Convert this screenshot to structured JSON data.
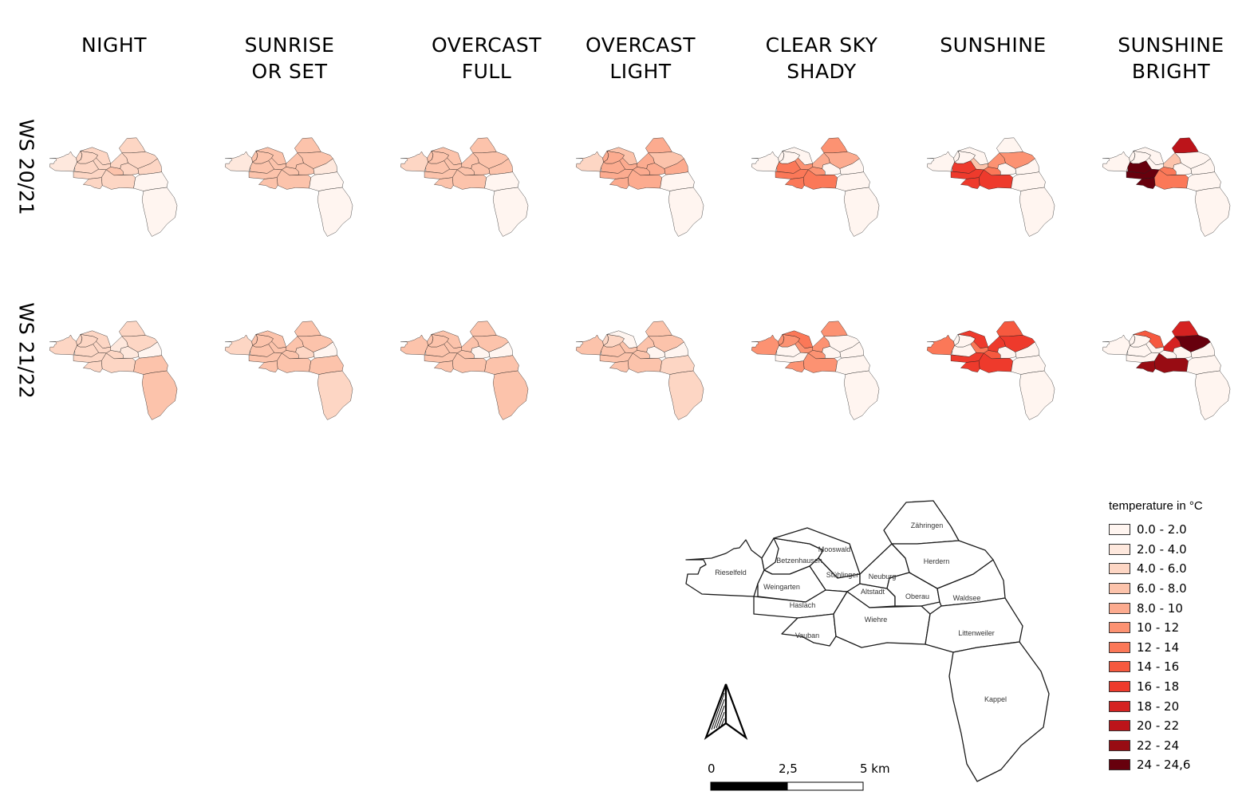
{
  "columns": [
    {
      "line1": "NIGHT",
      "line2": ""
    },
    {
      "line1": "SUNRISE",
      "line2": "OR SET"
    },
    {
      "line1": "OVERCAST",
      "line2": "FULL"
    },
    {
      "line1": "OVERCAST",
      "line2": "LIGHT"
    },
    {
      "line1": "CLEAR SKY",
      "line2": "SHADY"
    },
    {
      "line1": "SUNSHINE",
      "line2": ""
    },
    {
      "line1": "SUNSHINE",
      "line2": "BRIGHT"
    }
  ],
  "rows": [
    "WS 20/21",
    "WS 21/22"
  ],
  "legend": {
    "title": "temperature in °C",
    "items": [
      {
        "label": "0.0 - 2.0",
        "color": "#fff5f0"
      },
      {
        "label": "2.0 - 4.0",
        "color": "#fee8dd"
      },
      {
        "label": "4.0 - 6.0",
        "color": "#fdd6c4"
      },
      {
        "label": "6.0 - 8.0",
        "color": "#fcc3ab"
      },
      {
        "label": "8.0 - 10",
        "color": "#fcab8f"
      },
      {
        "label": "10 - 12",
        "color": "#fc9272"
      },
      {
        "label": "12 - 14",
        "color": "#fb7858"
      },
      {
        "label": "14 - 16",
        "color": "#f6593f"
      },
      {
        "label": "16 - 18",
        "color": "#ee3a2c"
      },
      {
        "label": "18 - 20",
        "color": "#d52221"
      },
      {
        "label": "20 - 22",
        "color": "#bc141a"
      },
      {
        "label": "22 - 24",
        "color": "#980c13"
      },
      {
        "label": "24 - 24,6",
        "color": "#67000d"
      }
    ]
  },
  "district_labels": {
    "rieselfeld": "Rieselfeld",
    "betzenhausen": "Betzenhausen",
    "mooswald": "Mooswald",
    "stuehlinger": "Stühlinger",
    "weingarten": "Weingarten",
    "haslach": "Haslach",
    "vauban": "Vauban",
    "altstadt": "Altstadt",
    "neuburg": "Neuburg",
    "oberau": "Oberau",
    "waldsee": "Waldsee",
    "wiehre": "Wiehre",
    "zaehringen": "Zähringen",
    "herdern": "Herdern",
    "littenweiler": "Littenweiler",
    "kappel": "Kappel"
  },
  "scale": {
    "tick0": "0",
    "tick1": "2,5",
    "tick2": "5 km"
  },
  "north_arrow_icon": "north-arrow-icon",
  "panels": [
    [
      {
        "rieselfeld": 1,
        "betzenhausen": 2,
        "mooswald": 2,
        "stuehlinger": 2,
        "weingarten": 2,
        "haslach": 2,
        "vauban": 2,
        "altstadt": 3,
        "neuburg": 2,
        "oberau": 2,
        "waldsee": 2,
        "wiehre": 2,
        "zaehringen": 2,
        "herdern": 2,
        "littenweiler": 0,
        "kappel": 0
      },
      {
        "rieselfeld": 1,
        "betzenhausen": 3,
        "mooswald": 3,
        "stuehlinger": 3,
        "weingarten": 3,
        "haslach": 3,
        "vauban": 3,
        "altstadt": 3,
        "neuburg": 3,
        "oberau": 3,
        "waldsee": 1,
        "wiehre": 3,
        "zaehringen": 3,
        "herdern": 3,
        "littenweiler": 0,
        "kappel": 0
      },
      {
        "rieselfeld": 2,
        "betzenhausen": 3,
        "mooswald": 3,
        "stuehlinger": 3,
        "weingarten": 3,
        "haslach": 3,
        "vauban": 3,
        "altstadt": 3,
        "neuburg": 3,
        "oberau": 3,
        "waldsee": 3,
        "wiehre": 3,
        "zaehringen": 3,
        "herdern": 3,
        "littenweiler": 0,
        "kappel": 0
      },
      {
        "rieselfeld": 2,
        "betzenhausen": 4,
        "mooswald": 3,
        "stuehlinger": 4,
        "weingarten": 4,
        "haslach": 4,
        "vauban": 4,
        "altstadt": 4,
        "neuburg": 4,
        "oberau": 4,
        "waldsee": 4,
        "wiehre": 4,
        "zaehringen": 4,
        "herdern": 3,
        "littenweiler": 0,
        "kappel": 0
      },
      {
        "rieselfeld": 0,
        "betzenhausen": 0,
        "mooswald": 0,
        "stuehlinger": 5,
        "weingarten": 6,
        "haslach": 6,
        "vauban": 6,
        "altstadt": 5,
        "neuburg": 4,
        "oberau": 0,
        "waldsee": 0,
        "wiehre": 6,
        "zaehringen": 5,
        "herdern": 4,
        "littenweiler": 0,
        "kappel": 0
      },
      {
        "rieselfeld": 0,
        "betzenhausen": 0,
        "mooswald": 0,
        "stuehlinger": 3,
        "weingarten": 8,
        "haslach": 8,
        "vauban": 8,
        "altstadt": 6,
        "neuburg": 5,
        "oberau": 0,
        "waldsee": 0,
        "wiehre": 8,
        "zaehringen": 0,
        "herdern": 5,
        "littenweiler": 0,
        "kappel": 0
      },
      {
        "rieselfeld": 0,
        "betzenhausen": 0,
        "mooswald": 0,
        "stuehlinger": 0,
        "weingarten": 12,
        "haslach": 12,
        "vauban": 12,
        "altstadt": 6,
        "neuburg": 3,
        "oberau": 0,
        "waldsee": 0,
        "wiehre": 6,
        "zaehringen": 10,
        "herdern": 0,
        "littenweiler": 0,
        "kappel": 0
      }
    ],
    [
      {
        "rieselfeld": 2,
        "betzenhausen": 2,
        "mooswald": 2,
        "stuehlinger": 2,
        "weingarten": 2,
        "haslach": 2,
        "vauban": 2,
        "altstadt": 2,
        "neuburg": 1,
        "oberau": 1,
        "waldsee": 0,
        "wiehre": 2,
        "zaehringen": 2,
        "herdern": 2,
        "littenweiler": 3,
        "kappel": 3
      },
      {
        "rieselfeld": 2,
        "betzenhausen": 3,
        "mooswald": 3,
        "stuehlinger": 3,
        "weingarten": 3,
        "haslach": 3,
        "vauban": 3,
        "altstadt": 3,
        "neuburg": 3,
        "oberau": 2,
        "waldsee": 0,
        "wiehre": 3,
        "zaehringen": 3,
        "herdern": 3,
        "littenweiler": 3,
        "kappel": 2
      },
      {
        "rieselfeld": 3,
        "betzenhausen": 3,
        "mooswald": 3,
        "stuehlinger": 3,
        "weingarten": 3,
        "haslach": 3,
        "vauban": 3,
        "altstadt": 3,
        "neuburg": 3,
        "oberau": 0,
        "waldsee": 0,
        "wiehre": 3,
        "zaehringen": 3,
        "herdern": 3,
        "littenweiler": 3,
        "kappel": 3
      },
      {
        "rieselfeld": 3,
        "betzenhausen": 2,
        "mooswald": 0,
        "stuehlinger": 3,
        "weingarten": 3,
        "haslach": 3,
        "vauban": 3,
        "altstadt": 3,
        "neuburg": 3,
        "oberau": 0,
        "waldsee": 0,
        "wiehre": 3,
        "zaehringen": 3,
        "herdern": 3,
        "littenweiler": 2,
        "kappel": 2
      },
      {
        "rieselfeld": 5,
        "betzenhausen": 5,
        "mooswald": 6,
        "stuehlinger": 5,
        "weingarten": 0,
        "haslach": 0,
        "vauban": 5,
        "altstadt": 5,
        "neuburg": 5,
        "oberau": 0,
        "waldsee": 0,
        "wiehre": 5,
        "zaehringen": 5,
        "herdern": 0,
        "littenweiler": 0,
        "kappel": 0
      },
      {
        "rieselfeld": 6,
        "betzenhausen": 0,
        "mooswald": 8,
        "stuehlinger": 6,
        "weingarten": 0,
        "haslach": 8,
        "vauban": 8,
        "altstadt": 7,
        "neuburg": 8,
        "oberau": 0,
        "waldsee": 0,
        "wiehre": 8,
        "zaehringen": 7,
        "herdern": 8,
        "littenweiler": 0,
        "kappel": 0
      },
      {
        "rieselfeld": 0,
        "betzenhausen": 0,
        "mooswald": 7,
        "stuehlinger": 0,
        "weingarten": 0,
        "haslach": 0,
        "vauban": 11,
        "altstadt": 0,
        "neuburg": 9,
        "oberau": 0,
        "waldsee": 0,
        "wiehre": 11,
        "zaehringen": 9,
        "herdern": 12,
        "littenweiler": 0,
        "kappel": 0
      }
    ]
  ]
}
